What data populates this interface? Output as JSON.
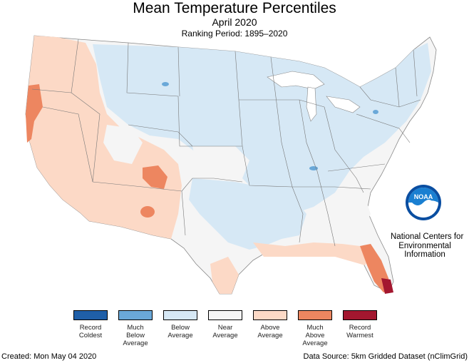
{
  "header": {
    "title": "Mean Temperature Percentiles",
    "subtitle": "April 2020",
    "period": "Ranking Period: 1895–2020"
  },
  "logo": {
    "text": "NOAA",
    "org_lines": [
      "National Centers for",
      "Environmental",
      "Information"
    ]
  },
  "legend": {
    "items": [
      {
        "lines": [
          "Record",
          "Coldest"
        ],
        "color": "#1f5fa8"
      },
      {
        "lines": [
          "Much",
          "Below",
          "Average"
        ],
        "color": "#6aa8d8"
      },
      {
        "lines": [
          "Below",
          "Average"
        ],
        "color": "#d6e8f5"
      },
      {
        "lines": [
          "Near",
          "Average"
        ],
        "color": "#f5f5f5"
      },
      {
        "lines": [
          "Above",
          "Average"
        ],
        "color": "#fcd9c6"
      },
      {
        "lines": [
          "Much",
          "Above",
          "Average"
        ],
        "color": "#ed8660"
      },
      {
        "lines": [
          "Record",
          "Warmest"
        ],
        "color": "#a3172f"
      }
    ]
  },
  "footer": {
    "created": "Created: Mon May 04 2020",
    "source": "Data Source: 5km Gridded Dataset (nClimGrid)"
  }
}
